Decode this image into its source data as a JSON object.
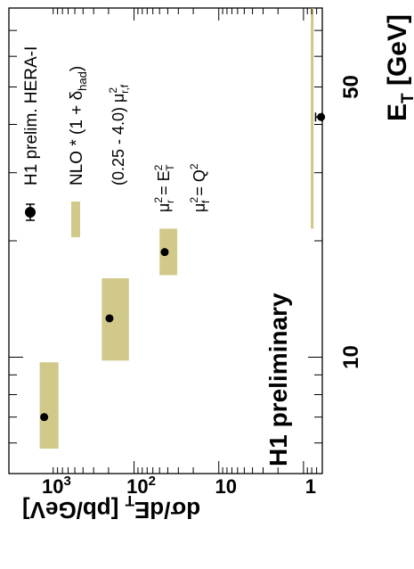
{
  "chart_data": {
    "type": "scatter",
    "x_scale": "log",
    "y_scale": "log",
    "xlabel_main": "E",
    "xlabel_sub": "T",
    "xlabel_unit": " [GeV]",
    "ylabel_main": "dσ/dE",
    "ylabel_sub": "T",
    "ylabel_unit": " [pb/GeV]",
    "xlim": [
      5,
      80
    ],
    "ylim": [
      0.6,
      3000
    ],
    "x_tick_labels": [
      {
        "value": 10,
        "text": "10"
      },
      {
        "value": 50,
        "text": "50"
      }
    ],
    "y_tick_labels": [
      {
        "value": 1,
        "base": "1",
        "exp": ""
      },
      {
        "value": 10,
        "base": "10",
        "exp": ""
      },
      {
        "value": 100,
        "base": "10",
        "exp": "2"
      },
      {
        "value": 1000,
        "base": "10",
        "exp": "3"
      }
    ],
    "series": [
      {
        "name": "H1 prelim. HERA-I",
        "x": [
          7.0,
          12.6,
          18.7,
          41.8
        ],
        "y": [
          1150,
          195,
          43.5,
          0.62
        ],
        "yerr": [
          0,
          0,
          0,
          0.1
        ],
        "color": "#000000"
      },
      {
        "name": "NLO * (1 + δhad)",
        "bins": [
          [
            5.8,
            9.7
          ],
          [
            9.8,
            16.0
          ],
          [
            16.3,
            21.5
          ],
          [
            21.5,
            80.0
          ]
        ],
        "ylow": [
          780,
          115,
          31,
          0.76
        ],
        "yhigh": [
          1300,
          240,
          50,
          0.82
        ],
        "color": "#d1c98a"
      }
    ],
    "legend": {
      "data_label": "H1 prelim. HERA-I",
      "band_prefix": "NLO * (1 + δ",
      "band_sub": "had",
      "band_suffix": ")",
      "scale_text": "(0.25 - 4.0) μ",
      "scale_sup": "2",
      "scale_sub": "r,f",
      "mur_main": "μ",
      "mur_sup": "2",
      "mur_sub": "r",
      "mur_rhs": " = E",
      "mur_rhs_sup": "2",
      "mur_rhs_sub": "T",
      "muf_main": "μ",
      "muf_sup": "2",
      "muf_sub": "f",
      "muf_rhs": " = Q",
      "muf_rhs_sup": "2",
      "placement": "top-right"
    },
    "annotation": "H1 preliminary"
  }
}
